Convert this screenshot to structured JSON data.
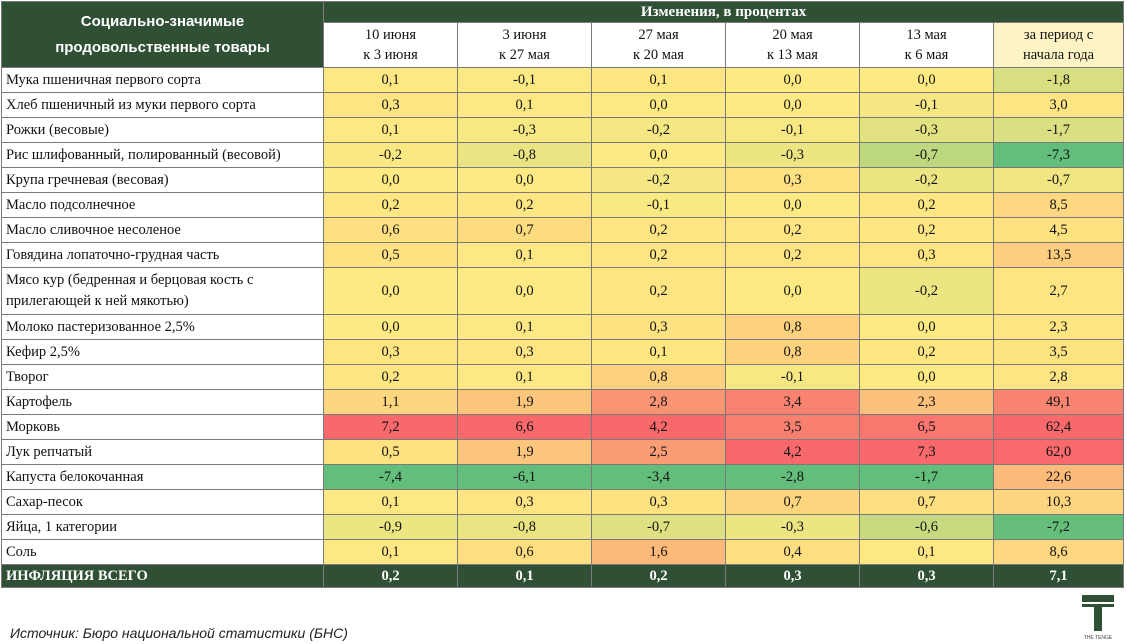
{
  "table": {
    "name_header": "Социально-значимые продовольственные товары",
    "group_header": "Изменения, в процентах",
    "columns": [
      {
        "l1": "10 июня",
        "l2": "к 3 июня"
      },
      {
        "l1": "3 июня",
        "l2": "к 27 мая"
      },
      {
        "l1": "27 мая",
        "l2": "к 20 мая"
      },
      {
        "l1": "20 мая",
        "l2": "к 13 мая"
      },
      {
        "l1": "13 мая",
        "l2": "к 6 мая"
      },
      {
        "l1": "за период с",
        "l2": "начала года"
      }
    ],
    "rows": [
      {
        "name": "Мука пшеничная первого сорта",
        "values": [
          "0,1",
          "-0,1",
          "0,1",
          "0,0",
          "0,0",
          "-1,8"
        ]
      },
      {
        "name": "Хлеб пшеничный из муки первого сорта",
        "values": [
          "0,3",
          "0,1",
          "0,0",
          "0,0",
          "-0,1",
          "3,0"
        ]
      },
      {
        "name": "Рожки (весовые)",
        "values": [
          "0,1",
          "-0,3",
          "-0,2",
          "-0,1",
          "-0,3",
          "-1,7"
        ]
      },
      {
        "name": "Рис шлифованный, полированный (весовой)",
        "values": [
          "-0,2",
          "-0,8",
          "0,0",
          "-0,3",
          "-0,7",
          "-7,3"
        ]
      },
      {
        "name": "Крупа гречневая (весовая)",
        "values": [
          "0,0",
          "0,0",
          "-0,2",
          "0,3",
          "-0,2",
          "-0,7"
        ]
      },
      {
        "name": "Масло подсолнечное",
        "values": [
          "0,2",
          "0,2",
          "-0,1",
          "0,0",
          "0,2",
          "8,5"
        ]
      },
      {
        "name": "Масло сливочное несоленое",
        "values": [
          "0,6",
          "0,7",
          "0,2",
          "0,2",
          "0,2",
          "4,5"
        ]
      },
      {
        "name": "Говядина лопаточно-грудная часть",
        "values": [
          "0,5",
          "0,1",
          "0,2",
          "0,2",
          "0,3",
          "13,5"
        ]
      },
      {
        "name": "Мясо кур (бедренная и берцовая кость с прилегающей к ней мякотью)",
        "values": [
          "0,0",
          "0,0",
          "0,2",
          "0,0",
          "-0,2",
          "2,7"
        ]
      },
      {
        "name": "Молоко пастеризованное 2,5%",
        "values": [
          "0,0",
          "0,1",
          "0,3",
          "0,8",
          "0,0",
          "2,3"
        ]
      },
      {
        "name": "Кефир 2,5%",
        "values": [
          "0,3",
          "0,3",
          "0,1",
          "0,8",
          "0,2",
          "3,5"
        ]
      },
      {
        "name": "Творог",
        "values": [
          "0,2",
          "0,1",
          "0,8",
          "-0,1",
          "0,0",
          "2,8"
        ]
      },
      {
        "name": "Картофель",
        "values": [
          "1,1",
          "1,9",
          "2,8",
          "3,4",
          "2,3",
          "49,1"
        ]
      },
      {
        "name": "Морковь",
        "values": [
          "7,2",
          "6,6",
          "4,2",
          "3,5",
          "6,5",
          "62,4"
        ]
      },
      {
        "name": "Лук репчатый",
        "values": [
          "0,5",
          "1,9",
          "2,5",
          "4,2",
          "7,3",
          "62,0"
        ]
      },
      {
        "name": "Капуста белокочанная",
        "values": [
          "-7,4",
          "-6,1",
          "-3,4",
          "-2,8",
          "-1,7",
          "22,6"
        ]
      },
      {
        "name": "Сахар-песок",
        "values": [
          "0,1",
          "0,3",
          "0,3",
          "0,7",
          "0,7",
          "10,3"
        ]
      },
      {
        "name": "Яйца, 1 категории",
        "values": [
          "-0,9",
          "-0,8",
          "-0,7",
          "-0,3",
          "-0,6",
          "-7,2"
        ]
      },
      {
        "name": "Соль",
        "values": [
          "0,1",
          "0,6",
          "1,6",
          "0,4",
          "0,1",
          "8,6"
        ]
      }
    ],
    "total": {
      "name": "ИНФЛЯЦИЯ ВСЕГО",
      "values": [
        "0,2",
        "0,1",
        "0,2",
        "0,3",
        "0,3",
        "7,1"
      ]
    }
  },
  "footer": {
    "source": "Источник: Бюро национальной статистики (БНС)"
  },
  "logo": {
    "text": "THE TENGE",
    "color": "#2f5034"
  }
}
